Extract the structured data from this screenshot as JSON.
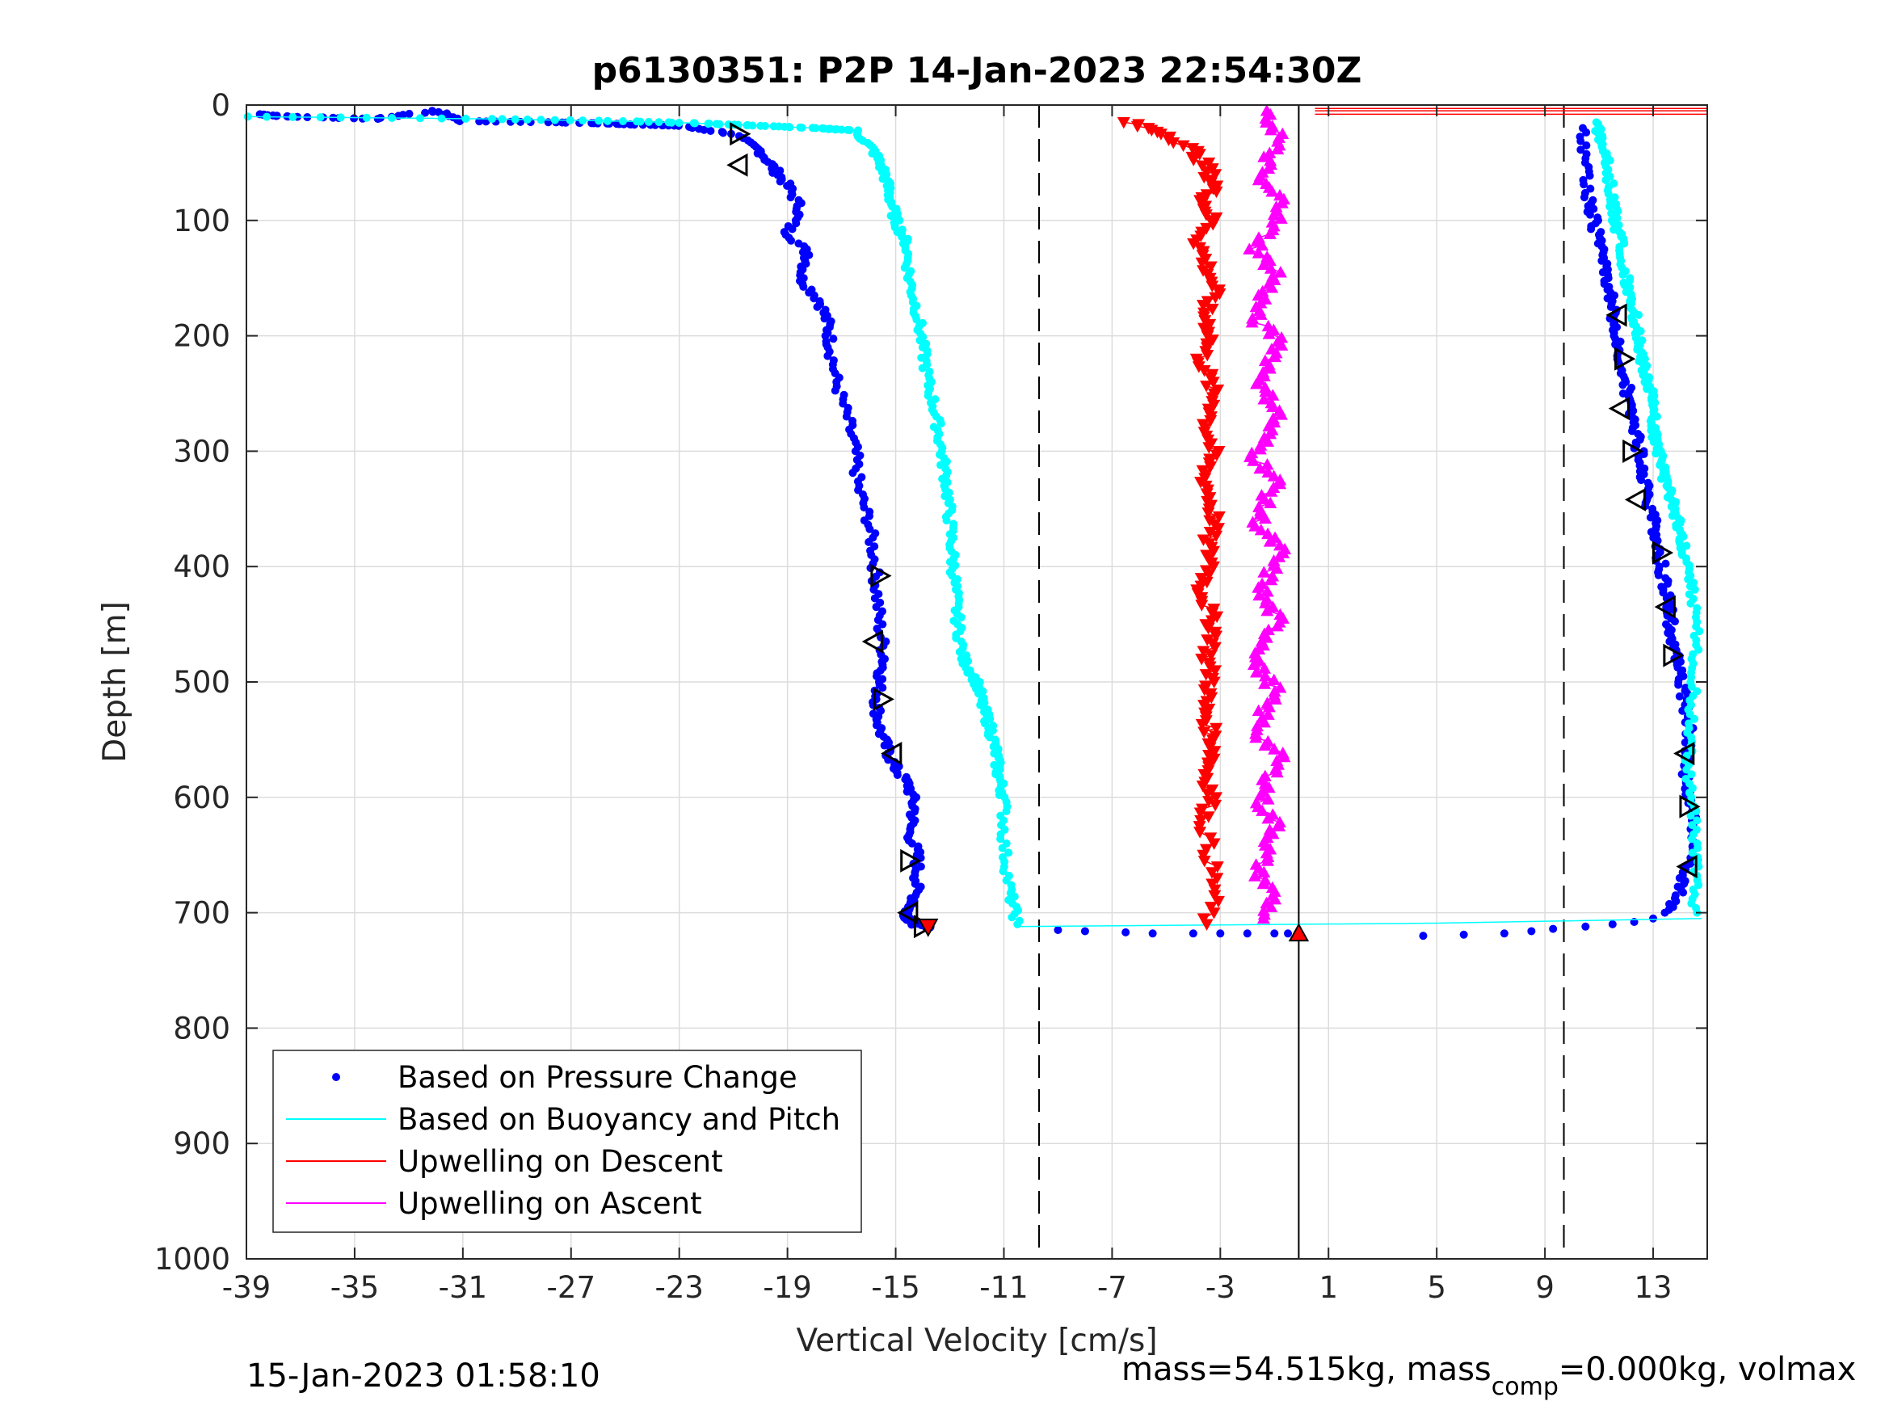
{
  "chart_data": {
    "type": "scatter",
    "title": "p6130351: P2P 14-Jan-2023 22:54:30Z",
    "xlabel": "Vertical Velocity [cm/s]",
    "ylabel": "Depth [m]",
    "xlim": [
      -39,
      15
    ],
    "ylim": [
      0,
      1000
    ],
    "y_reversed": true,
    "grid": true,
    "xticks": [
      -39,
      -35,
      -31,
      -27,
      -23,
      -19,
      -15,
      -11,
      -7,
      -3,
      1,
      5,
      9,
      13
    ],
    "xtick_labels": [
      "-39",
      "-35",
      "-31",
      "-27",
      "-23",
      "-19",
      "-15",
      "-11",
      "-7",
      "-3",
      "1",
      "5",
      "9",
      "13"
    ],
    "yticks": [
      0,
      100,
      200,
      300,
      400,
      500,
      600,
      700,
      800,
      900,
      1000
    ],
    "ytick_labels": [
      "0",
      "100",
      "200",
      "300",
      "400",
      "500",
      "600",
      "700",
      "800",
      "900",
      "1000"
    ],
    "reference_lines": {
      "dashed_x": [
        -9.7,
        9.7
      ],
      "solid_x": [
        -0.1
      ]
    },
    "legend": {
      "location": "bottom-left",
      "entries": [
        "Based on Pressure Change",
        "Based on Buoyancy and Pitch",
        "Upwelling on Descent",
        "Upwelling on Ascent"
      ]
    },
    "series": [
      {
        "name": "Based on Pressure Change",
        "color": "#0000ff",
        "marker": "dot",
        "profiles": [
          {
            "x": [
              -38.5,
              -37.5,
              -34.2,
              -32,
              -31,
              -27.5,
              -25.7,
              -24.5,
              -23,
              -21,
              -20,
              -19.5,
              -19,
              -18.5,
              -19,
              -18.2,
              -18.5,
              -17.8,
              -17.5,
              -17.4,
              -17.2,
              -16.8,
              -16.5,
              -16.4,
              -16,
              -15.8,
              -15.7,
              -15.6,
              -15.4,
              -15.6,
              -15.7,
              -15.6,
              -15.3,
              -15,
              -14.5,
              -14.3,
              -14.5,
              -14.2,
              -14.2,
              -14.3,
              -14.6,
              -14.5,
              -14.3,
              -13.8
            ],
            "y": [
              8,
              10,
              12,
              5,
              14,
              15,
              16,
              17,
              18,
              25,
              40,
              55,
              70,
              90,
              110,
              130,
              150,
              170,
              190,
              210,
              240,
              270,
              300,
              330,
              360,
              390,
              420,
              450,
              480,
              500,
              520,
              540,
              560,
              575,
              590,
              610,
              630,
              650,
              670,
              690,
              700,
              705,
              710,
              713
            ]
          },
          {
            "x": [
              -9,
              -8,
              -6.5,
              -5.5,
              -4,
              -3,
              -2,
              -1,
              -0.5,
              4.5,
              6,
              7.5,
              8.5,
              9.3,
              10.5,
              11.5,
              12.3,
              13
            ],
            "y": [
              715,
              716,
              717,
              718,
              718,
              718,
              718,
              718,
              718,
              720,
              719,
              718,
              716,
              714,
              712,
              710,
              708,
              705
            ]
          },
          {
            "x": [
              13.6,
              14,
              14.3,
              14.6,
              14.5,
              14.3,
              14.2,
              14.3,
              14.4,
              14.2,
              14,
              13.9,
              13.7,
              13.6,
              13.5,
              13.3,
              13.2,
              13,
              12.8,
              12.6,
              12.5,
              12.3,
              12.1,
              12,
              11.8,
              11.7,
              11.5,
              11.4,
              11.2,
              11,
              10.8,
              10.6,
              10.5,
              10.4
            ],
            "y": [
              700,
              680,
              660,
              650,
              620,
              600,
              580,
              560,
              540,
              520,
              500,
              480,
              460,
              440,
              420,
              400,
              380,
              360,
              340,
              320,
              300,
              280,
              260,
              240,
              220,
              200,
              180,
              160,
              140,
              120,
              100,
              80,
              50,
              20
            ]
          }
        ]
      },
      {
        "name": "Based on Buoyancy and Pitch",
        "color": "#00ffff",
        "marker": "dot-line",
        "profiles": [
          {
            "x": [
              -39,
              -30,
              -25,
              -22,
              -20,
              -18,
              -16.5,
              -15.8,
              -15.4,
              -15.2,
              -15,
              -14.6,
              -14.5,
              -14.2,
              -14,
              -13.8,
              -13.5,
              -13.3,
              -13.1,
              -13,
              -12.9,
              -12.8,
              -12.7,
              -12.5,
              -12,
              -11.8,
              -11.5,
              -11.3,
              -11.2,
              -11,
              -11,
              -10.8,
              -10.5
            ],
            "y": [
              10,
              12,
              14,
              16,
              18,
              20,
              22,
              40,
              60,
              80,
              100,
              120,
              150,
              180,
              210,
              240,
              270,
              300,
              330,
              360,
              390,
              420,
              450,
              480,
              500,
              520,
              540,
              560,
              580,
              600,
              640,
              680,
              710
            ]
          },
          {
            "x": [
              -10.5,
              -5,
              0,
              5,
              10,
              14.8
            ],
            "y": [
              712,
              711,
              710,
              709,
              707,
              705
            ]
          },
          {
            "x": [
              14.5,
              14.6,
              14.5,
              14.3,
              14.4,
              14.5,
              14.6,
              14.4,
              14.2,
              14,
              13.8,
              13.5,
              13.3,
              13.1,
              13,
              12.9,
              12.7,
              12.5,
              12.4,
              12.2,
              12,
              11.8,
              11.6,
              11.5,
              11.3,
              11.1,
              10.9
            ],
            "y": [
              700,
              660,
              620,
              580,
              540,
              500,
              460,
              420,
              390,
              370,
              350,
              330,
              310,
              290,
              270,
              250,
              230,
              210,
              190,
              170,
              150,
              120,
              100,
              80,
              50,
              30,
              15
            ]
          }
        ]
      },
      {
        "name": "Upwelling on Descent",
        "color": "#ff0000",
        "marker": "triangle-down",
        "profiles": [
          {
            "x": [
              -6.5,
              -5,
              -4,
              -3.5,
              -3.2,
              -3.6,
              -3.3,
              -3.8,
              -3.5,
              -3.2,
              -3.6,
              -3.3,
              -3.7,
              -3.4,
              -3.2,
              -3.5,
              -3.3,
              -3.6,
              -3.4,
              -3.2,
              -3.5,
              -3.3,
              -3.7,
              -3.4,
              -3.2,
              -3.5,
              -3.3,
              -3.6,
              -3.4,
              -3.2,
              -3.5,
              -3.3,
              -3.6,
              -3.4,
              -3.2,
              -3.5
            ],
            "y": [
              15,
              25,
              40,
              55,
              70,
              85,
              100,
              120,
              140,
              160,
              180,
              200,
              220,
              240,
              260,
              280,
              300,
              320,
              340,
              360,
              380,
              400,
              420,
              440,
              460,
              480,
              500,
              520,
              540,
              560,
              580,
              600,
              620,
              650,
              680,
              710
            ]
          }
        ]
      },
      {
        "name": "Upwelling on Ascent",
        "color": "#ff00ff",
        "marker": "triangle-up",
        "profiles": [
          {
            "x": [
              -1.5,
              -0.8,
              -1.2,
              -1.6,
              -0.6,
              -1.1,
              -1.7,
              -0.9,
              -1.4,
              -1.8,
              -0.7,
              -1.2,
              -1.5,
              -0.8,
              -1.3,
              -1.7,
              -0.9,
              -1.4,
              -1.6,
              -0.8,
              -1.2,
              -1.5,
              -0.9,
              -1.3,
              -1.7,
              -1,
              -1.4,
              -1.6,
              -0.8,
              -1.2,
              -1.5,
              -0.9,
              -1.3,
              -1.6,
              -1,
              -1.4
            ],
            "y": [
              5,
              25,
              45,
              65,
              85,
              105,
              125,
              145,
              165,
              185,
              205,
              225,
              245,
              265,
              285,
              305,
              325,
              345,
              365,
              385,
              405,
              425,
              445,
              465,
              485,
              505,
              525,
              545,
              565,
              585,
              605,
              625,
              645,
              665,
              685,
              705
            ]
          }
        ]
      }
    ],
    "segment_markers": {
      "color": "#000000",
      "points": [
        {
          "x": -20.8,
          "y": 25,
          "dir": "right"
        },
        {
          "x": -20.8,
          "y": 52,
          "dir": "left"
        },
        {
          "x": -15.6,
          "y": 408,
          "dir": "right"
        },
        {
          "x": -15.8,
          "y": 465,
          "dir": "left"
        },
        {
          "x": -15.5,
          "y": 515,
          "dir": "right"
        },
        {
          "x": -15.1,
          "y": 562,
          "dir": "left"
        },
        {
          "x": -14.5,
          "y": 655,
          "dir": "right"
        },
        {
          "x": -14.5,
          "y": 700,
          "dir": "left"
        },
        {
          "x": -14.0,
          "y": 712,
          "dir": "right"
        },
        {
          "x": 11.7,
          "y": 182,
          "dir": "left"
        },
        {
          "x": 11.9,
          "y": 220,
          "dir": "right"
        },
        {
          "x": 11.8,
          "y": 263,
          "dir": "left"
        },
        {
          "x": 12.2,
          "y": 300,
          "dir": "right"
        },
        {
          "x": 12.4,
          "y": 342,
          "dir": "left"
        },
        {
          "x": 13.3,
          "y": 388,
          "dir": "right"
        },
        {
          "x": 13.5,
          "y": 435,
          "dir": "left"
        },
        {
          "x": 13.7,
          "y": 477,
          "dir": "right"
        },
        {
          "x": 14.2,
          "y": 562,
          "dir": "left"
        },
        {
          "x": 14.3,
          "y": 608,
          "dir": "right"
        },
        {
          "x": 14.3,
          "y": 660,
          "dir": "left"
        }
      ]
    },
    "upper_descent_lines": {
      "color": "#ff0000",
      "x_from": 0.5,
      "x_to": 15,
      "y": [
        3,
        5,
        8
      ]
    },
    "end_points": {
      "descent": {
        "x": -13.8,
        "y": 712
      },
      "ascent": {
        "x": -0.1,
        "y": 718
      }
    }
  },
  "footer": {
    "timestamp": "15-Jan-2023 01:58:10",
    "mass_text_a": "mass=54.515kg, mass",
    "mass_subscript": "comp",
    "mass_text_b": "=0.000kg, volmax"
  }
}
